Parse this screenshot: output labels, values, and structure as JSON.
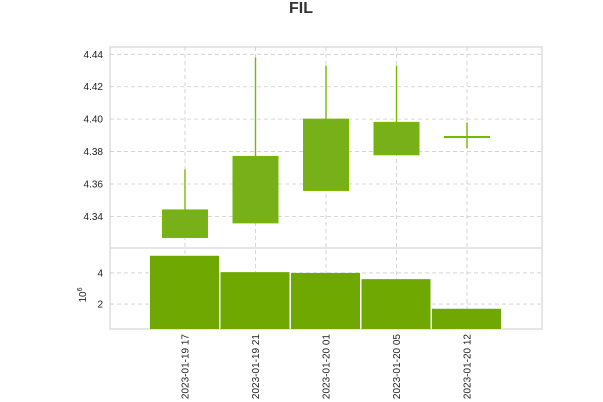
{
  "chart_data": {
    "type": "candlestick",
    "title": "FIL",
    "categories": [
      "2023-01-19 17",
      "2023-01-19 21",
      "2023-01-20 01",
      "2023-01-20 05",
      "2023-01-20 12"
    ],
    "ohlc": [
      {
        "open": 4.327,
        "high": 4.369,
        "low": 4.327,
        "close": 4.344
      },
      {
        "open": 4.336,
        "high": 4.438,
        "low": 4.336,
        "close": 4.377
      },
      {
        "open": 4.356,
        "high": 4.433,
        "low": 4.356,
        "close": 4.4
      },
      {
        "open": 4.378,
        "high": 4.433,
        "low": 4.378,
        "close": 4.398
      },
      {
        "open": 4.388,
        "high": 4.398,
        "low": 4.382,
        "close": 4.389
      }
    ],
    "volume": [
      5.1,
      4.05,
      4.0,
      3.6,
      1.7
    ],
    "price_yticks": [
      "4.34",
      "4.36",
      "4.38",
      "4.40",
      "4.42",
      "4.44"
    ],
    "price_ylim": [
      4.3205,
      4.4445
    ],
    "volume_yticks": [
      "2",
      "4"
    ],
    "volume_ylim": [
      0.4,
      5.6
    ],
    "volume_scale_label": "10",
    "volume_scale_exp": "6",
    "colors": {
      "up": "#76b900",
      "body": "#77b019",
      "volume": "#6fa800",
      "grid": "#cccccc"
    },
    "grid": true
  }
}
